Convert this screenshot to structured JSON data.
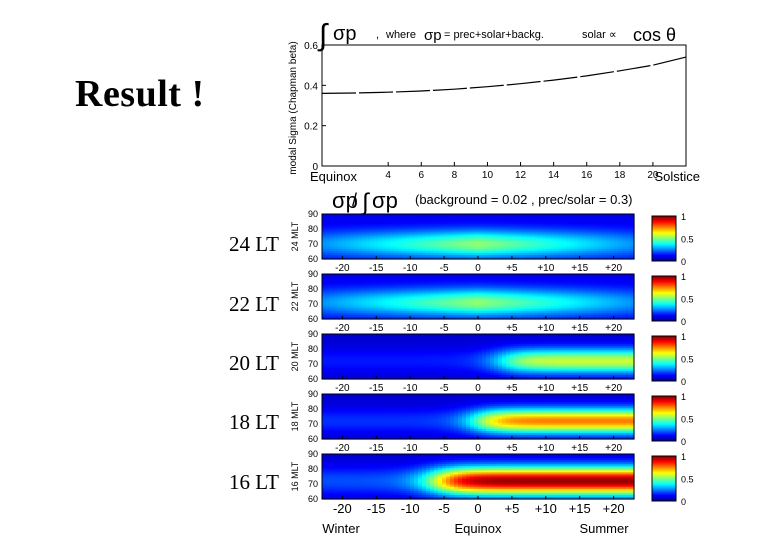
{
  "slide_title": "Result !",
  "chart_data": [
    {
      "type": "line",
      "title_parts": {
        "integral": "∫",
        "sigma_p": "σp",
        "comma": ",",
        "where": "where",
        "sigma_p2": "σp",
        "definition": "= prec+solar+backg.",
        "solar_prop": "solar ∝",
        "cos": "cos θ"
      },
      "ylabel": "modal Sigma (Chapman beta)",
      "ylim": [
        0,
        0.6
      ],
      "yticks": [
        "0",
        "0.2",
        "0.4",
        "0.6"
      ],
      "xticks": [
        "Equinox",
        "4",
        "6",
        "8",
        "10",
        "12",
        "14",
        "16",
        "18",
        "20",
        "Solstice"
      ],
      "x": [
        0,
        2,
        4,
        6,
        8,
        10,
        12,
        14,
        16,
        18,
        20,
        22
      ],
      "values": [
        0.36,
        0.362,
        0.366,
        0.372,
        0.381,
        0.393,
        0.408,
        0.426,
        0.447,
        0.472,
        0.5,
        0.54
      ]
    },
    {
      "type": "heatmap",
      "title_parts": {
        "sigma_p": "σp",
        "slash": "/",
        "integral": "∫",
        "sigma_p2": "σp",
        "params": "(background = 0.02 ,  prec/solar = 0.3)"
      },
      "x_range": [
        -23,
        23
      ],
      "y_range": [
        60,
        90
      ],
      "yticks": [
        "90",
        "80",
        "70",
        "60"
      ],
      "xticks": [
        "-20",
        "-15",
        "-10",
        "-5",
        "0",
        "+5",
        "+10",
        "+15",
        "+20"
      ],
      "xticks_upper": [
        "-20",
        "-15",
        "-10",
        "-5",
        "0",
        "+5",
        "+10",
        "+15",
        "+20"
      ],
      "xlabels": [
        "Winter",
        "Equinox",
        "Summer"
      ],
      "colorbar": {
        "range": [
          0,
          1
        ],
        "ticks": [
          "1",
          "0.5",
          "0"
        ]
      },
      "panels": [
        {
          "lt_label": "24 LT",
          "ylabel": "24 MLT",
          "intensity": 0.55,
          "onset": 0.55,
          "spread": 1.4,
          "peak_lat": 70,
          "lat_width": 9
        },
        {
          "lt_label": "22 LT",
          "ylabel": "22 MLT",
          "intensity": 0.5,
          "onset": 0.65,
          "spread": 1.3,
          "peak_lat": 71,
          "lat_width": 9
        },
        {
          "lt_label": "20 LT",
          "ylabel": "20 MLT",
          "intensity": 0.55,
          "onset": 0.35,
          "spread": 0.8,
          "peak_lat": 72,
          "lat_width": 8
        },
        {
          "lt_label": "18 LT",
          "ylabel": "18 MLT",
          "intensity": 0.75,
          "onset": 0.0,
          "spread": 0.8,
          "peak_lat": 72,
          "lat_width": 8
        },
        {
          "lt_label": "16 LT",
          "ylabel": "16 MLT",
          "intensity": 1.0,
          "onset": -0.6,
          "spread": 0.9,
          "peak_lat": 72,
          "lat_width": 9
        }
      ]
    }
  ]
}
